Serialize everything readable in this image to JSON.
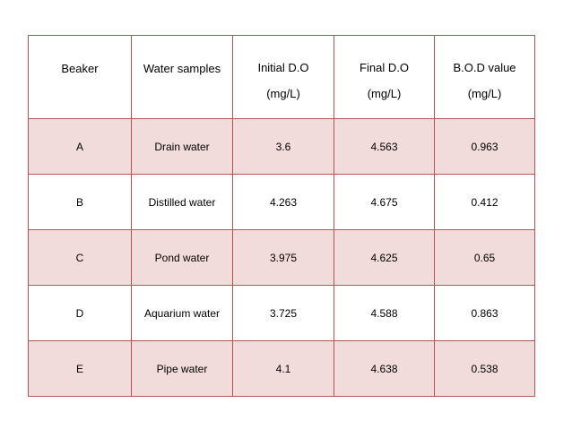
{
  "table": {
    "headers": [
      {
        "line1": "Beaker",
        "line2": ""
      },
      {
        "line1": "Water samples",
        "line2": ""
      },
      {
        "line1": "Initial D.O",
        "line2": "(mg/L)"
      },
      {
        "line1": "Final D.O",
        "line2": "(mg/L)"
      },
      {
        "line1": "B.O.D value",
        "line2": "(mg/L)"
      }
    ],
    "rows": [
      [
        "A",
        "Drain water",
        "3.6",
        "4.563",
        "0.963"
      ],
      [
        "B",
        "Distilled water",
        "4.263",
        "4.675",
        "0.412"
      ],
      [
        "C",
        "Pond water",
        "3.975",
        "4.625",
        "0.65"
      ],
      [
        "D",
        "Aquarium water",
        "3.725",
        "4.588",
        "0.863"
      ],
      [
        "E",
        "Pipe water",
        "4.1",
        "4.638",
        "0.538"
      ]
    ]
  },
  "colors": {
    "border": "#b85450",
    "band": "#f2dcdb",
    "plain": "#ffffff"
  }
}
